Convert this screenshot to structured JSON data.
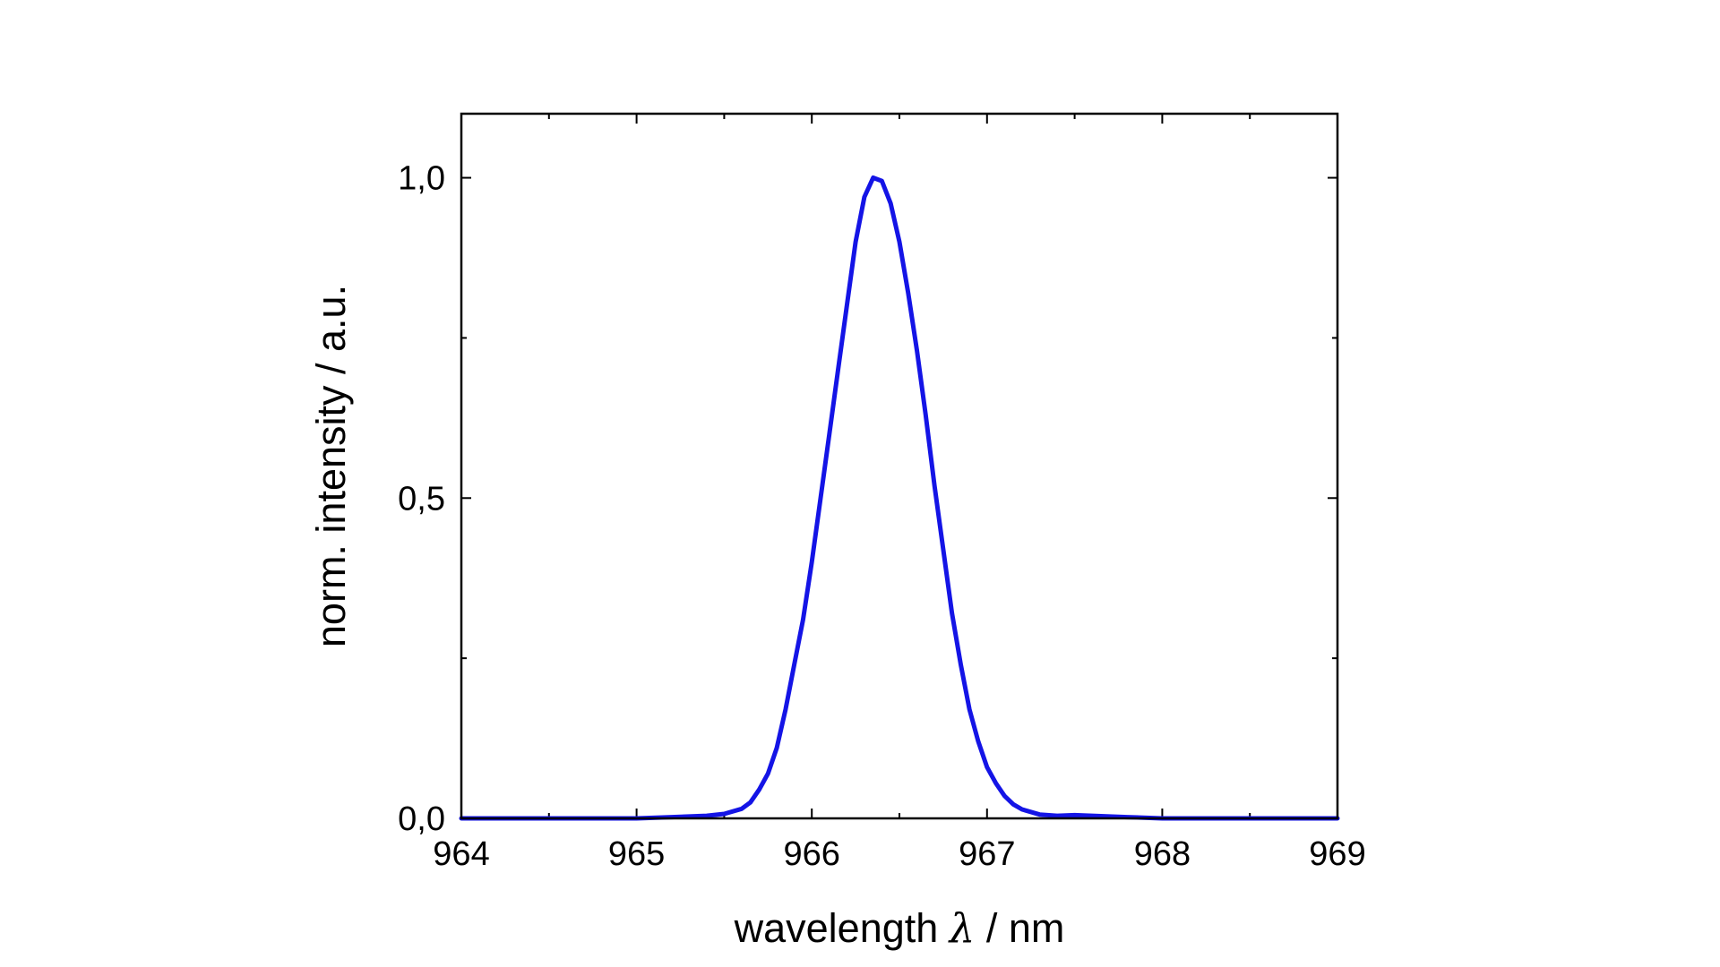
{
  "chart_data": {
    "type": "line",
    "xlabel_prefix": "wavelength ",
    "xlabel_symbol": "λ",
    "xlabel_suffix": " / nm",
    "ylabel": "norm. intensity / a.u.",
    "xlim": [
      964,
      969
    ],
    "ylim": [
      0,
      1.1
    ],
    "x_ticks": [
      964,
      965,
      966,
      967,
      968,
      969
    ],
    "x_tick_labels": [
      "964",
      "965",
      "966",
      "967",
      "968",
      "969"
    ],
    "y_ticks": [
      0,
      0.5,
      1.0
    ],
    "y_tick_labels": [
      "0,0",
      "0,5",
      "1,0"
    ],
    "x_minor_ticks": [
      964.5,
      965.5,
      966.5,
      967.5,
      968.5
    ],
    "y_minor_ticks": [
      0.25,
      0.75
    ],
    "grid": false,
    "series": [
      {
        "color": "#1414e6",
        "x": [
          964.0,
          964.2,
          964.4,
          964.6,
          964.8,
          965.0,
          965.2,
          965.4,
          965.5,
          965.6,
          965.65,
          965.7,
          965.75,
          965.8,
          965.85,
          965.9,
          965.95,
          966.0,
          966.05,
          966.1,
          966.15,
          966.2,
          966.25,
          966.3,
          966.35,
          966.4,
          966.45,
          966.5,
          966.55,
          966.6,
          966.65,
          966.7,
          966.75,
          966.8,
          966.85,
          966.9,
          966.95,
          967.0,
          967.05,
          967.1,
          967.15,
          967.2,
          967.3,
          967.4,
          967.5,
          967.6,
          967.7,
          967.8,
          968.0,
          968.2,
          968.4,
          968.6,
          968.8,
          969.0
        ],
        "y": [
          0.0,
          0.0,
          0.0,
          0.0,
          0.0,
          0.0,
          0.002,
          0.004,
          0.007,
          0.015,
          0.025,
          0.045,
          0.07,
          0.11,
          0.17,
          0.24,
          0.31,
          0.4,
          0.5,
          0.6,
          0.7,
          0.8,
          0.9,
          0.97,
          1.0,
          0.995,
          0.96,
          0.9,
          0.82,
          0.73,
          0.63,
          0.52,
          0.42,
          0.32,
          0.24,
          0.17,
          0.12,
          0.08,
          0.055,
          0.035,
          0.022,
          0.014,
          0.006,
          0.004,
          0.005,
          0.004,
          0.003,
          0.002,
          0.0,
          0.0,
          0.0,
          0.0,
          0.0,
          0.0
        ]
      }
    ]
  }
}
